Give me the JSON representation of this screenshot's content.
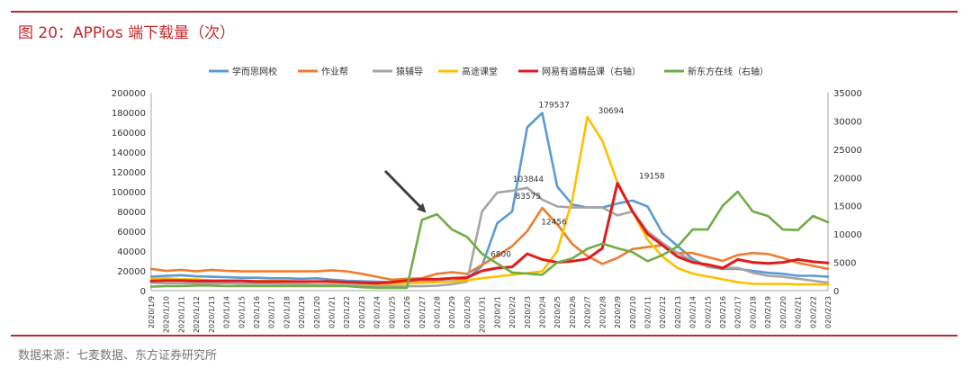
{
  "header": {
    "title": "图 20：APPios 端下载量（次）"
  },
  "footer": {
    "source": "数据来源：七麦数据、东方证券研究所"
  },
  "colors": {
    "accent": "#c5262c",
    "arrow": "#404040"
  },
  "chart_data": {
    "type": "line",
    "title": "图 20：APPios 端下载量（次）",
    "x": [
      "2020/1/9",
      "2020/1/10",
      "2020/1/11",
      "2020/1/12",
      "2020/1/13",
      "2020/1/14",
      "2020/1/15",
      "2020/1/16",
      "2020/1/17",
      "2020/1/18",
      "2020/1/19",
      "2020/1/20",
      "2020/1/21",
      "2020/1/22",
      "2020/1/23",
      "2020/1/24",
      "2020/1/25",
      "2020/1/26",
      "2020/1/27",
      "2020/1/28",
      "2020/1/29",
      "2020/1/30",
      "2020/1/31",
      "2020/2/1",
      "2020/2/2",
      "2020/2/3",
      "2020/2/4",
      "2020/2/5",
      "2020/2/6",
      "2020/2/7",
      "2020/2/8",
      "2020/2/9",
      "2020/2/10",
      "2020/2/11",
      "2020/2/12",
      "2020/2/13",
      "2020/2/14",
      "2020/2/15",
      "2020/2/16",
      "2020/2/17",
      "2020/2/18",
      "2020/2/19",
      "2020/2/20",
      "2020/2/21",
      "2020/2/22",
      "2020/2/23"
    ],
    "x_tick_labels": [
      "2020/1/9",
      "2020/1/10",
      "2020/1/11",
      "2020/1/12",
      "2020/1/13",
      "020/1/14",
      "020/1/15",
      "020/1/16",
      "020/1/17",
      "020/1/18",
      "020/1/19",
      "020/1/20",
      "020/1/21",
      "020/1/22",
      "020/1/23",
      "020/1/24",
      "020/1/25",
      "020/1/26",
      "020/1/27",
      "020/1/28",
      "020/1/29",
      "020/1/30",
      "2020/1/31",
      "2020/2/1",
      "2020/2/2",
      "2020/2/3",
      "2020/2/4",
      "2020/2/5",
      "2020/2/6",
      "2020/2/7",
      "2020/2/8",
      "2020/2/9",
      "020/2/10",
      "020/2/11",
      "020/2/12",
      "020/2/13",
      "020/2/14",
      "020/2/15",
      "020/2/16",
      "020/2/17",
      "020/2/18",
      "020/2/19",
      "020/2/20",
      "020/2/21",
      "020/2/22",
      "020/2/23"
    ],
    "y_left": {
      "min": 0,
      "max": 200000,
      "step": 20000
    },
    "y_right": {
      "min": 0,
      "max": 35000,
      "step": 5000
    },
    "legend_position": "top",
    "grid": false,
    "series": [
      {
        "name": "学而思网校",
        "axis": "left",
        "color": "#5b9bd5",
        "values": [
          14000,
          15000,
          15500,
          14500,
          14000,
          13500,
          13000,
          13000,
          12500,
          12500,
          12000,
          12500,
          11000,
          10000,
          9500,
          9000,
          8500,
          8000,
          8500,
          9000,
          9500,
          12000,
          25000,
          68000,
          80000,
          165000,
          179537,
          105000,
          87000,
          84000,
          84000,
          88000,
          91000,
          85000,
          58000,
          45000,
          32000,
          24000,
          22000,
          22000,
          20000,
          18000,
          17000,
          15000,
          15000,
          14000
        ]
      },
      {
        "name": "作业帮",
        "axis": "left",
        "color": "#ed7d31",
        "values": [
          22000,
          20000,
          21000,
          19500,
          21000,
          20000,
          19500,
          19500,
          19500,
          19500,
          19500,
          19500,
          20500,
          19500,
          17000,
          14000,
          11000,
          12000,
          12500,
          17000,
          18500,
          17000,
          26000,
          35000,
          45000,
          60000,
          83575,
          67000,
          47000,
          35000,
          27000,
          33000,
          42000,
          44000,
          46000,
          38000,
          38000,
          34000,
          30000,
          36000,
          38000,
          37000,
          33000,
          28000,
          25000,
          22000
        ]
      },
      {
        "name": "猿辅导",
        "axis": "left",
        "color": "#a5a5a5",
        "values": [
          8000,
          7500,
          7500,
          7500,
          7500,
          7500,
          7000,
          7000,
          7000,
          6500,
          6500,
          6000,
          6000,
          5500,
          5000,
          5000,
          4500,
          4500,
          4500,
          5000,
          6500,
          9000,
          80000,
          99000,
          101000,
          103844,
          92000,
          85000,
          84000,
          84000,
          84000,
          76000,
          80000,
          60000,
          48000,
          38000,
          30000,
          24000,
          23000,
          23000,
          18000,
          15000,
          14000,
          12000,
          10000,
          8000
        ]
      },
      {
        "name": "高途课堂",
        "axis": "right",
        "color": "#ffc000",
        "values": [
          2000,
          2200,
          2000,
          2000,
          1800,
          1800,
          1800,
          1700,
          1700,
          1700,
          1600,
          1600,
          1500,
          1400,
          1300,
          1200,
          1200,
          1300,
          1400,
          1500,
          1600,
          1800,
          2200,
          2500,
          2800,
          3100,
          3400,
          7000,
          16000,
          30694,
          26500,
          19158,
          14000,
          9000,
          6000,
          4000,
          3000,
          2500,
          2000,
          1500,
          1200,
          1200,
          1200,
          1100,
          1100,
          1100
        ]
      },
      {
        "name": "网易有道精品课（右轴）",
        "axis": "right",
        "color": "#e11b1b",
        "values": [
          1700,
          1800,
          1800,
          1700,
          1700,
          1700,
          1700,
          1600,
          1600,
          1600,
          1600,
          1600,
          1600,
          1500,
          1400,
          1300,
          1500,
          1800,
          2000,
          2000,
          2200,
          2300,
          3500,
          4000,
          4200,
          6500,
          5500,
          5000,
          5200,
          5600,
          7500,
          19000,
          14000,
          10000,
          8000,
          6000,
          5000,
          4600,
          4000,
          5500,
          5000,
          4800,
          5000,
          5500,
          5100,
          4900
        ]
      },
      {
        "name": "新东方在线（右轴）",
        "axis": "right",
        "color": "#70ad47",
        "values": [
          700,
          800,
          800,
          900,
          900,
          800,
          800,
          800,
          800,
          800,
          800,
          800,
          800,
          800,
          600,
          500,
          500,
          500,
          12500,
          13500,
          10800,
          9500,
          6500,
          4800,
          3200,
          3000,
          2800,
          5000,
          5700,
          7400,
          8300,
          7500,
          6800,
          5200,
          6300,
          7800,
          10800,
          10800,
          15000,
          17500,
          14000,
          13200,
          10800,
          10700,
          13200,
          12100
        ]
      }
    ],
    "annotations": [
      "179537",
      "103844",
      "83575",
      "12456",
      "6800",
      "30694",
      "19158"
    ]
  }
}
